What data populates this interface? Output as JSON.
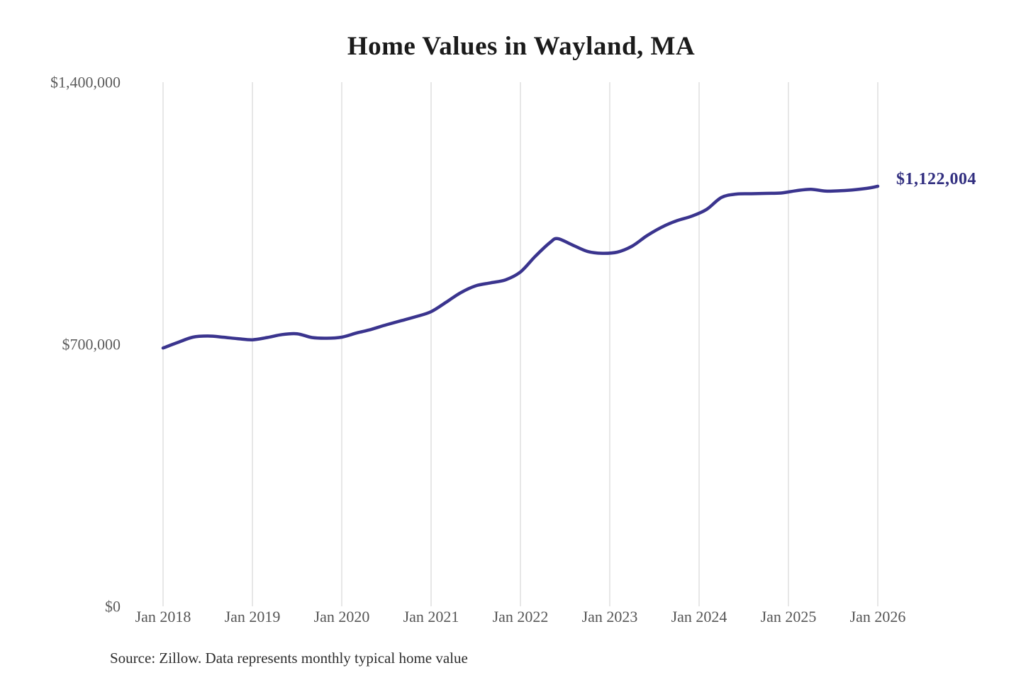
{
  "title": "Home Values in Wayland, MA",
  "source_note": "Source: Zillow. Data represents monthly typical home value",
  "end_label": "$1,122,004",
  "colors": {
    "line": "#3a348e",
    "end_label": "#322f80",
    "grid": "#cfcfcf",
    "title_text": "#1b1b1b",
    "axis_text": "#585858",
    "source_text": "#2d2d2d"
  },
  "chart_data": {
    "type": "line",
    "title": "Home Values in Wayland, MA",
    "xlabel": "",
    "ylabel": "",
    "ylim": [
      0,
      1400000
    ],
    "grid": "vertical-only",
    "legend": "none",
    "x_tick_labels": [
      "Jan 2018",
      "Jan 2019",
      "Jan 2020",
      "Jan 2021",
      "Jan 2022",
      "Jan 2023",
      "Jan 2024",
      "Jan 2025",
      "Jan 2026"
    ],
    "y_ticks": [
      {
        "label": "$0",
        "value": 0
      },
      {
        "label": "$700,000",
        "value": 700000
      },
      {
        "label": "$1,400,000",
        "value": 1400000
      }
    ],
    "final_value": 1122004,
    "final_value_label": "$1,122,004",
    "series": [
      {
        "name": "Monthly typical home value",
        "points": [
          [
            "2018-01",
            690000
          ],
          [
            "2018-03",
            705000
          ],
          [
            "2018-05",
            719000
          ],
          [
            "2018-07",
            722000
          ],
          [
            "2018-09",
            719000
          ],
          [
            "2018-11",
            715000
          ],
          [
            "2019-01",
            712000
          ],
          [
            "2019-03",
            718000
          ],
          [
            "2019-05",
            726000
          ],
          [
            "2019-07",
            728000
          ],
          [
            "2019-09",
            718000
          ],
          [
            "2019-11",
            716000
          ],
          [
            "2020-01",
            719000
          ],
          [
            "2020-03",
            730000
          ],
          [
            "2020-05",
            740000
          ],
          [
            "2020-07",
            752000
          ],
          [
            "2020-09",
            763000
          ],
          [
            "2020-11",
            774000
          ],
          [
            "2021-01",
            787000
          ],
          [
            "2021-03",
            812000
          ],
          [
            "2021-05",
            838000
          ],
          [
            "2021-07",
            856000
          ],
          [
            "2021-09",
            864000
          ],
          [
            "2021-11",
            872000
          ],
          [
            "2022-01",
            893000
          ],
          [
            "2022-03",
            935000
          ],
          [
            "2022-05",
            972000
          ],
          [
            "2022-06",
            982000
          ],
          [
            "2022-08",
            965000
          ],
          [
            "2022-10",
            948000
          ],
          [
            "2022-12",
            943000
          ],
          [
            "2023-02",
            946000
          ],
          [
            "2023-04",
            962000
          ],
          [
            "2023-06",
            990000
          ],
          [
            "2023-08",
            1013000
          ],
          [
            "2023-10",
            1030000
          ],
          [
            "2023-12",
            1042000
          ],
          [
            "2024-02",
            1060000
          ],
          [
            "2024-04",
            1092000
          ],
          [
            "2024-06",
            1101000
          ],
          [
            "2024-08",
            1102000
          ],
          [
            "2024-10",
            1103000
          ],
          [
            "2024-12",
            1104000
          ],
          [
            "2025-02",
            1110000
          ],
          [
            "2025-04",
            1114000
          ],
          [
            "2025-06",
            1109000
          ],
          [
            "2025-08",
            1110000
          ],
          [
            "2025-10",
            1113000
          ],
          [
            "2025-12",
            1118000
          ],
          [
            "2026-01",
            1122004
          ]
        ]
      }
    ]
  }
}
